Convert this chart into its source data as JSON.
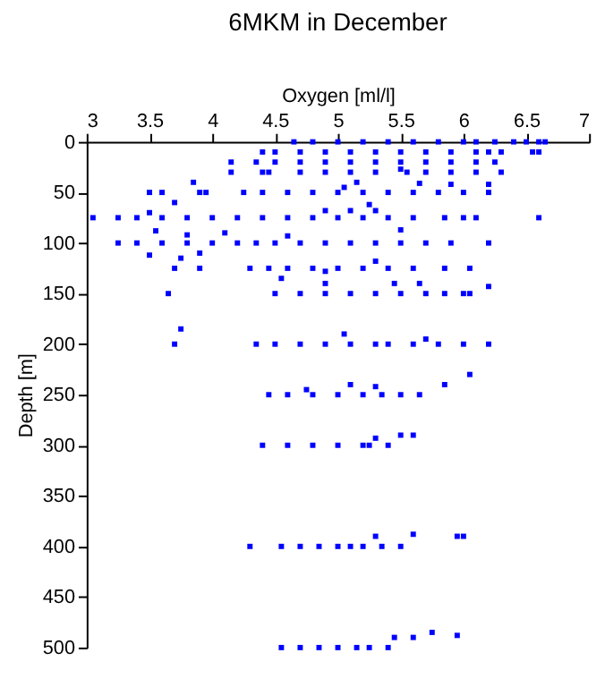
{
  "chart_data": {
    "type": "scatter",
    "title": "6MKM in December",
    "xlabel": "Oxygen [ml/l]",
    "ylabel": "Depth [m]",
    "xlim": [
      3,
      7
    ],
    "xticks": [
      3,
      3.5,
      4,
      4.5,
      5,
      5.5,
      6,
      6.5,
      7
    ],
    "ylim": [
      500,
      0
    ],
    "yticks": [
      0,
      50,
      100,
      150,
      200,
      250,
      300,
      350,
      400,
      450,
      500
    ],
    "marker": "square",
    "grid": false,
    "legend": false,
    "series": [
      {
        "color": "#0000ff",
        "x": [
          4.65,
          4.8,
          5.0,
          5.2,
          5.4,
          5.6,
          5.8,
          6.0,
          6.1,
          6.25,
          6.4,
          6.5,
          6.6,
          6.65,
          4.4,
          4.5,
          4.7,
          4.9,
          5.1,
          5.3,
          5.5,
          5.7,
          5.9,
          6.1,
          6.2,
          6.3,
          6.55,
          6.6,
          4.15,
          4.35,
          4.5,
          4.7,
          4.9,
          5.1,
          5.3,
          5.5,
          5.7,
          5.9,
          6.1,
          6.25,
          4.15,
          4.4,
          4.45,
          4.7,
          4.9,
          5.1,
          5.3,
          5.5,
          5.55,
          5.7,
          5.9,
          6.1,
          6.3,
          3.5,
          3.6,
          3.9,
          3.95,
          4.25,
          4.4,
          4.6,
          4.8,
          5.0,
          5.2,
          5.4,
          5.6,
          5.8,
          6.0,
          6.2,
          3.85,
          5.05,
          5.15,
          5.25,
          5.65,
          5.9,
          6.2,
          3.05,
          3.25,
          3.4,
          3.6,
          3.8,
          4.0,
          4.2,
          4.4,
          4.6,
          4.8,
          5.0,
          5.2,
          5.4,
          5.6,
          5.85,
          6.0,
          6.1,
          6.6,
          3.5,
          3.7,
          4.9,
          5.1,
          5.3,
          3.25,
          3.4,
          3.6,
          3.8,
          4.0,
          4.2,
          4.35,
          4.5,
          4.7,
          4.9,
          5.1,
          5.3,
          5.5,
          5.7,
          5.9,
          6.2,
          3.55,
          3.8,
          3.9,
          4.1,
          4.6,
          5.5,
          3.7,
          3.9,
          4.3,
          4.45,
          4.6,
          4.8,
          5.0,
          5.2,
          5.4,
          5.6,
          5.85,
          6.05,
          3.5,
          3.75,
          4.55,
          4.9,
          5.3,
          3.65,
          4.5,
          4.7,
          4.9,
          5.1,
          5.3,
          5.5,
          5.7,
          5.85,
          6.0,
          6.05,
          4.9,
          5.45,
          5.65,
          6.2,
          3.7,
          4.35,
          4.5,
          4.7,
          4.9,
          5.1,
          5.3,
          5.4,
          5.6,
          5.8,
          6.0,
          6.2,
          3.75,
          5.05,
          5.7,
          4.45,
          4.6,
          4.8,
          5.0,
          5.2,
          5.35,
          5.5,
          5.65,
          4.75,
          5.1,
          5.3,
          5.85,
          6.05,
          4.4,
          4.6,
          4.8,
          5.0,
          5.2,
          5.25,
          5.4,
          5.3,
          5.5,
          5.6,
          4.3,
          4.55,
          4.7,
          4.85,
          5.0,
          5.1,
          5.2,
          5.35,
          5.5,
          5.3,
          5.6,
          5.95,
          6.0,
          4.55,
          4.7,
          4.85,
          5.0,
          5.15,
          5.25,
          5.4,
          5.45,
          5.6,
          5.75,
          5.95
        ],
        "values": [
          0,
          0,
          0,
          0,
          0,
          0,
          0,
          0,
          0,
          0,
          0,
          0,
          0,
          0,
          10,
          10,
          10,
          10,
          10,
          10,
          10,
          10,
          10,
          10,
          10,
          10,
          10,
          10,
          20,
          20,
          20,
          20,
          20,
          20,
          20,
          20,
          20,
          20,
          20,
          20,
          30,
          30,
          30,
          30,
          30,
          30,
          30,
          27,
          30,
          30,
          30,
          30,
          30,
          50,
          50,
          50,
          50,
          50,
          50,
          50,
          50,
          50,
          50,
          50,
          50,
          50,
          50,
          50,
          40,
          45,
          40,
          62,
          41,
          42,
          42,
          75,
          75,
          75,
          75,
          75,
          75,
          75,
          75,
          75,
          75,
          75,
          75,
          75,
          75,
          75,
          75,
          75,
          75,
          70,
          60,
          68,
          68,
          68,
          100,
          100,
          100,
          100,
          100,
          100,
          100,
          100,
          100,
          100,
          100,
          100,
          100,
          100,
          100,
          100,
          88,
          92,
          110,
          90,
          93,
          87,
          125,
          125,
          125,
          125,
          125,
          125,
          125,
          125,
          125,
          125,
          125,
          125,
          112,
          115,
          135,
          128,
          118,
          150,
          150,
          150,
          150,
          150,
          150,
          150,
          150,
          150,
          150,
          150,
          140,
          140,
          140,
          143,
          200,
          200,
          200,
          200,
          200,
          200,
          200,
          200,
          200,
          200,
          200,
          200,
          185,
          190,
          195,
          250,
          250,
          250,
          250,
          250,
          250,
          250,
          250,
          245,
          240,
          242,
          240,
          230,
          300,
          300,
          300,
          300,
          300,
          300,
          300,
          293,
          290,
          290,
          400,
          400,
          400,
          400,
          400,
          400,
          400,
          400,
          400,
          390,
          388,
          390,
          390,
          500,
          500,
          500,
          500,
          500,
          500,
          500,
          490,
          490,
          485,
          488
        ]
      }
    ]
  }
}
